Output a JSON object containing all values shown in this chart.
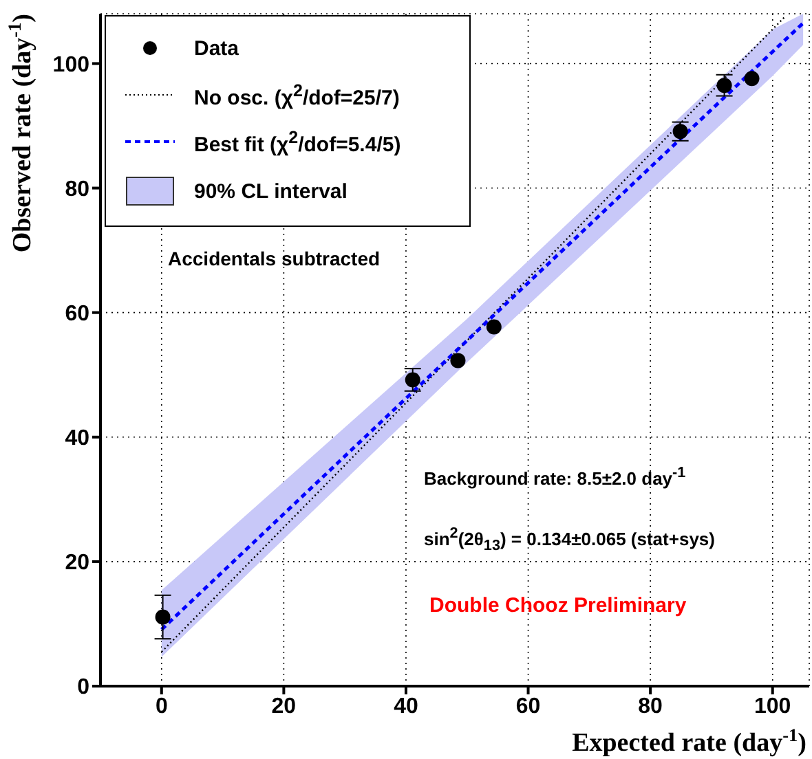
{
  "chart_data": {
    "type": "scatter",
    "xlabel": "Expected rate (day$^{-1}$)",
    "ylabel": "Observed rate (day$^{-1}$)",
    "xlim": [
      -10,
      106
    ],
    "xticks": [
      0,
      20,
      40,
      60,
      80,
      100
    ],
    "ylim": [
      0,
      108
    ],
    "yticks": [
      0,
      20,
      40,
      60,
      80,
      100
    ],
    "grid": true,
    "legend": "top left",
    "annotations": [
      "90% CL interval",
      "Accidentals subtracted",
      "Background rate: 8.5±2.0 day$^{-1}$",
      "sin$^{2}$(2θ$_{13}$) = 0.134±0.065 (stat+sys)",
      "Double Chooz Preliminary"
    ],
    "series": [
      {
        "name": "Data",
        "marker": "circle",
        "color": "#000000",
        "x": [
          0.2,
          41.1,
          48.5,
          54.4,
          84.9,
          92.1,
          96.6
        ],
        "values": [
          11.1,
          49.2,
          52.3,
          57.7,
          89.1,
          96.5,
          97.6
        ],
        "errors": [
          3.5,
          1.8,
          null,
          null,
          1.5,
          1.7,
          null
        ]
      },
      {
        "name": "No osc. (χ$^{2}$/dof=25/7)",
        "type": "line",
        "line_style": "dotted",
        "color": "#000000",
        "x": [
          0,
          102
        ],
        "values": [
          5.5,
          107.5
        ]
      },
      {
        "name": "Best fit (χ$^{2}$/dof=5.4/5)",
        "type": "line",
        "line_style": "dashed",
        "color": "#0000ff",
        "x": [
          0,
          50,
          100,
          105
        ],
        "values": [
          9.1,
          55.5,
          101.9,
          106.5
        ],
        "lower": [
          4.7,
          52,
          98,
          103
        ],
        "upper": [
          15.4,
          59,
          105.5,
          108
        ]
      }
    ]
  }
}
